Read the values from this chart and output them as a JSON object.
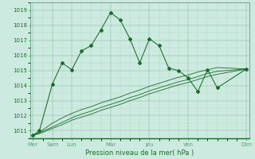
{
  "xlabel": "Pression niveau de la mer( hPa )",
  "bg_color": "#cceae0",
  "grid_color": "#5a9e7a",
  "line_color": "#1a6b2a",
  "ylim": [
    1010.5,
    1019.5
  ],
  "yticks": [
    1011,
    1012,
    1013,
    1014,
    1015,
    1016,
    1017,
    1018,
    1019
  ],
  "xlim": [
    -0.15,
    11.15
  ],
  "day_tick_labels": [
    "Mer",
    "Sam",
    "Lun",
    "Mar",
    "Jeu",
    "Ven",
    "Dim"
  ],
  "day_tick_pos": [
    0,
    1,
    2,
    4,
    6,
    8,
    11
  ],
  "s1_x": [
    0,
    0.33,
    1.0,
    1.5,
    2.0,
    2.5,
    3.0,
    3.5,
    4.0,
    4.5,
    5.0,
    5.5,
    6.0,
    6.5,
    7.0,
    7.5,
    8.0,
    8.5,
    9.0,
    9.5,
    11.0
  ],
  "s1_y": [
    1010.7,
    1011.0,
    1014.1,
    1015.5,
    1015.05,
    1016.3,
    1016.65,
    1017.7,
    1018.85,
    1018.35,
    1017.1,
    1015.5,
    1017.1,
    1016.65,
    1015.15,
    1015.0,
    1014.5,
    1013.6,
    1015.05,
    1013.85,
    1015.1
  ],
  "s2_x": [
    0,
    0.33,
    1.0,
    1.5,
    2.0,
    2.5,
    3.0,
    3.5,
    4.0,
    4.5,
    5.0,
    5.5,
    6.0,
    6.5,
    7.0,
    7.5,
    8.0,
    8.5,
    9.0,
    9.5,
    11.0
  ],
  "s2_y": [
    1010.7,
    1010.8,
    1011.15,
    1011.4,
    1011.7,
    1011.9,
    1012.1,
    1012.35,
    1012.55,
    1012.75,
    1013.0,
    1013.2,
    1013.45,
    1013.65,
    1013.85,
    1014.05,
    1014.2,
    1014.4,
    1014.6,
    1014.75,
    1015.1
  ],
  "s3_x": [
    0,
    0.33,
    1.0,
    1.5,
    2.0,
    2.5,
    3.0,
    3.5,
    4.0,
    4.5,
    5.0,
    5.5,
    6.0,
    6.5,
    7.0,
    7.5,
    8.0,
    8.5,
    9.0,
    9.5,
    11.0
  ],
  "s3_y": [
    1010.7,
    1010.85,
    1011.25,
    1011.55,
    1011.85,
    1012.1,
    1012.3,
    1012.55,
    1012.75,
    1012.95,
    1013.2,
    1013.4,
    1013.65,
    1013.85,
    1014.05,
    1014.25,
    1014.4,
    1014.6,
    1014.8,
    1014.95,
    1015.1
  ],
  "s4_x": [
    0,
    0.33,
    1.0,
    1.5,
    2.0,
    2.5,
    3.0,
    3.5,
    4.0,
    4.5,
    5.0,
    5.5,
    6.0,
    6.5,
    7.0,
    7.5,
    8.0,
    8.5,
    9.0,
    9.5,
    11.0
  ],
  "s4_y": [
    1010.7,
    1010.9,
    1011.5,
    1011.85,
    1012.15,
    1012.4,
    1012.6,
    1012.85,
    1013.05,
    1013.25,
    1013.5,
    1013.7,
    1013.95,
    1014.15,
    1014.35,
    1014.55,
    1014.7,
    1014.9,
    1015.05,
    1015.2,
    1015.1
  ]
}
